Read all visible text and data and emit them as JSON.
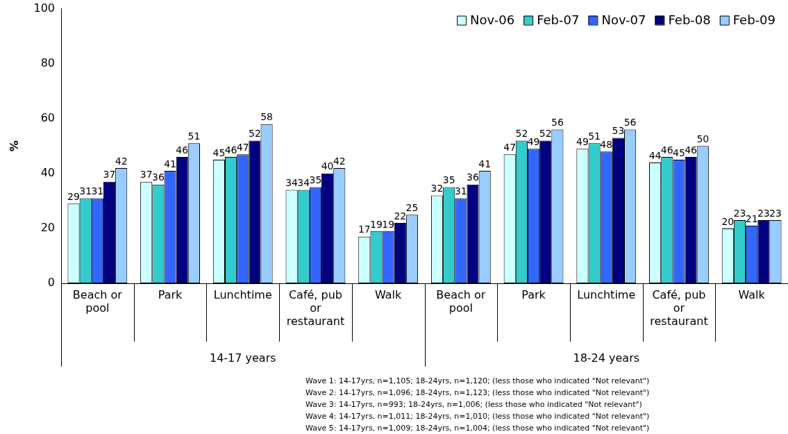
{
  "chart_data": {
    "type": "bar",
    "ylabel": "%",
    "categories": [
      "Beach or pool",
      "Park",
      "Lunchtime",
      "Café, pub or restaurant",
      "Walk",
      "Beach or pool",
      "Park",
      "Lunchtime",
      "Café, pub or restaurant",
      "Walk"
    ],
    "series": [
      {
        "name": "Nov-06",
        "color": "#ccffff",
        "values": [
          29,
          37,
          45,
          34,
          17,
          32,
          47,
          49,
          44,
          20
        ]
      },
      {
        "name": "Feb-07",
        "color": "#33cccc",
        "values": [
          31,
          36,
          46,
          34,
          19,
          35,
          52,
          51,
          46,
          23
        ]
      },
      {
        "name": "Nov-07",
        "color": "#3366ff",
        "values": [
          31,
          41,
          47,
          35,
          19,
          31,
          49,
          48,
          45,
          21
        ]
      },
      {
        "name": "Feb-08",
        "color": "#000080",
        "values": [
          37,
          46,
          52,
          40,
          22,
          36,
          52,
          53,
          46,
          23
        ]
      },
      {
        "name": "Feb-09",
        "color": "#99ccff",
        "values": [
          42,
          51,
          58,
          42,
          25,
          41,
          56,
          56,
          50,
          23
        ]
      }
    ],
    "ylim": [
      0,
      100
    ],
    "yticks": [
      0,
      20,
      40,
      60,
      80,
      100
    ],
    "grid": false,
    "legend": "top right",
    "data_labels": true,
    "annotations": [
      "14-17 years",
      "18-24 years",
      "Wave 1: 14-17yrs, n=1,105; 18-24yrs, n=1,120; (less those who indicated \"Not relevant\")\nWave 2: 14-17yrs, n=1,096; 18-24yrs, n=1,123; (less those who indicated \"Not relevant\")\nWave 3: 14-17yrs, n=993; 18-24yrs, n=1,006; (less those who indicated \"Not relevant\")\nWave 4: 14-17yrs, n=1,011; 18-24yrs, n=1,010; (less those who indicated \"Not relevant\")\nWave 5: 14-17yrs, n=1,009; 18-24yrs, n=1,004; (less those who indicated \"Not relevant\")"
    ]
  }
}
